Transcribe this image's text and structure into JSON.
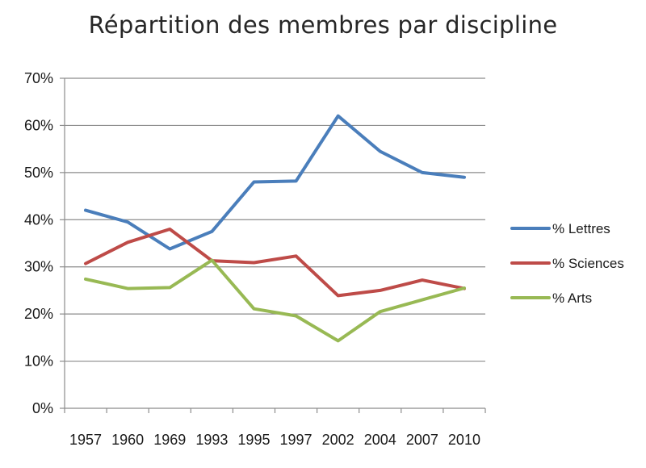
{
  "chart_data": {
    "type": "line",
    "title": "Répartition des membres par discipline",
    "xlabel": "",
    "ylabel": "",
    "categories": [
      "1957",
      "1960",
      "1969",
      "1993",
      "1995",
      "1997",
      "2002",
      "2004",
      "2007",
      "2010"
    ],
    "series": [
      {
        "name": "% Lettres",
        "color": "#4a7ebb",
        "values": [
          42,
          39.5,
          33.8,
          37.5,
          48,
          48.2,
          62,
          54.5,
          50,
          49
        ]
      },
      {
        "name": "% Sciences",
        "color": "#be4b48",
        "values": [
          30.7,
          35.2,
          38,
          31.3,
          30.9,
          32.3,
          23.9,
          25,
          27.2,
          25.4
        ]
      },
      {
        "name": "% Arts",
        "color": "#98b954",
        "values": [
          27.4,
          25.4,
          25.6,
          31.4,
          21.1,
          19.6,
          14.3,
          20.5,
          23,
          25.5
        ]
      }
    ],
    "ylim": [
      0,
      70
    ],
    "yticks": [
      "0%",
      "10%",
      "20%",
      "30%",
      "40%",
      "50%",
      "60%",
      "70%"
    ],
    "grid": true,
    "legend_position": "right"
  }
}
